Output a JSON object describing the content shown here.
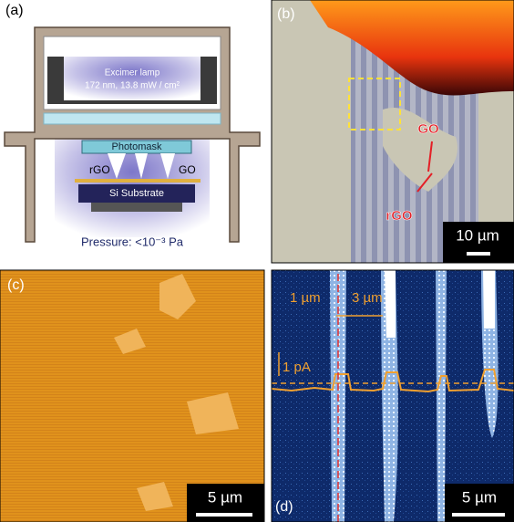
{
  "panels": {
    "a": {
      "label": "(a)",
      "lamp_title": "Excimer lamp",
      "lamp_spec": "172 nm, 13.8 mW / cm²",
      "photomask": "Photomask",
      "rgo": "rGO",
      "go": "GO",
      "substrate": "Si Substrate",
      "pressure": "Pressure: <10⁻³ Pa"
    },
    "b": {
      "label": "(b)",
      "go": "GO",
      "rgo": "rGO",
      "scale_bar": "10 µm"
    },
    "c": {
      "label": "(c)",
      "scale_bar": "5 µm"
    },
    "d": {
      "label": "(d)",
      "width_1": "1 µm",
      "width_2": "3 µm",
      "current": "1 pA",
      "scale_bar": "5 µm"
    }
  }
}
